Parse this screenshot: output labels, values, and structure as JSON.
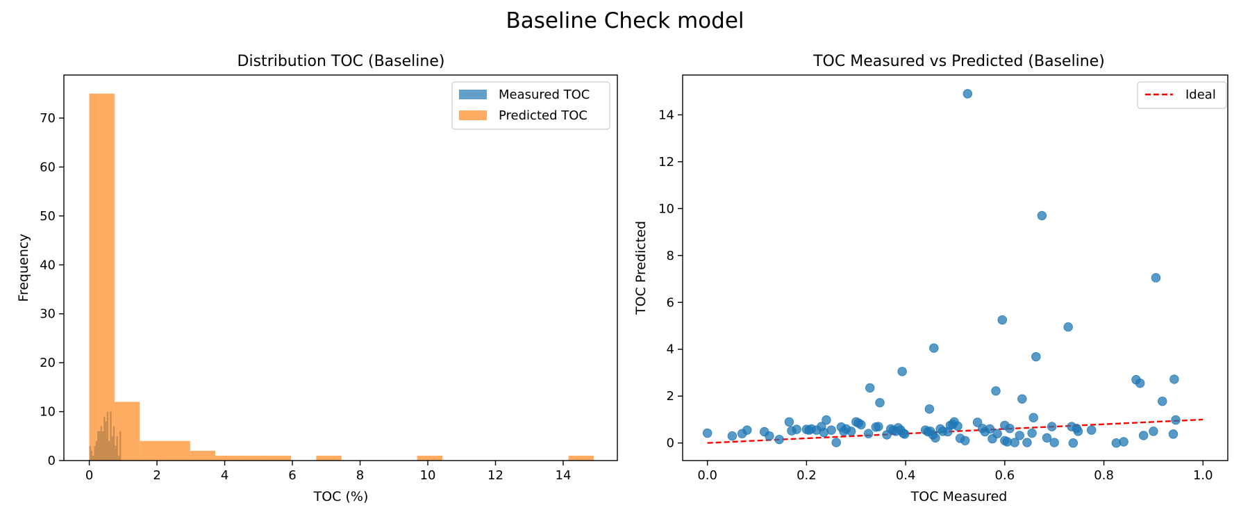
{
  "figure": {
    "title": "Baseline Check model"
  },
  "colors": {
    "measured": "#1f77b4",
    "predicted": "#ff7f0e",
    "ideal": "#ff0000",
    "legend_border": "#cccccc"
  },
  "chart_data": [
    {
      "type": "bar",
      "subtype": "histogram",
      "title": "Distribution TOC (Baseline)",
      "xlabel": "TOC (%)",
      "ylabel": "Frequency",
      "xlim": [
        -0.75,
        15.6
      ],
      "ylim": [
        0,
        78.8
      ],
      "xticks": [
        0,
        2,
        4,
        6,
        8,
        10,
        12,
        14
      ],
      "yticks": [
        0,
        10,
        20,
        30,
        40,
        50,
        60,
        70
      ],
      "legend_position": "top-right",
      "legend": [
        "Measured TOC",
        "Predicted TOC"
      ],
      "series": [
        {
          "name": "Measured TOC",
          "color": "#1f77b4",
          "opacity": 0.7,
          "bin_start": 0.0,
          "bin_width": 0.047,
          "counts": [
            3,
            2,
            1,
            3,
            4,
            6,
            6,
            7,
            6,
            9,
            8,
            10,
            4,
            10,
            5,
            7,
            3,
            5,
            1,
            6
          ]
        },
        {
          "name": "Predicted TOC",
          "color": "#ff7f0e",
          "opacity": 0.65,
          "bin_start": 0.0,
          "bin_width": 0.745,
          "counts": [
            75,
            12,
            4,
            4,
            2,
            1,
            1,
            1,
            0,
            1,
            0,
            0,
            0,
            1,
            0,
            0,
            0,
            0,
            0,
            1
          ]
        }
      ]
    },
    {
      "type": "scatter",
      "title": "TOC Measured vs Predicted (Baseline)",
      "xlabel": "TOC Measured",
      "ylabel": "TOC Predicted",
      "xlim": [
        -0.05,
        1.05
      ],
      "ylim": [
        -0.75,
        15.7
      ],
      "xticks": [
        "0.0",
        "0.2",
        "0.4",
        "0.6",
        "0.8",
        "1.0"
      ],
      "yticks": [
        "0",
        "2",
        "4",
        "6",
        "8",
        "10",
        "12",
        "14"
      ],
      "legend_position": "top-right",
      "legend": [
        "Ideal"
      ],
      "ideal_line": {
        "name": "Ideal",
        "x": [
          0,
          1
        ],
        "y": [
          0,
          1
        ],
        "color": "#ff0000",
        "style": "dashed"
      },
      "series": [
        {
          "name": "",
          "color": "#1f77b4",
          "points": [
            [
              0.0,
              0.42
            ],
            [
              0.05,
              0.3
            ],
            [
              0.07,
              0.4
            ],
            [
              0.08,
              0.55
            ],
            [
              0.115,
              0.48
            ],
            [
              0.125,
              0.3
            ],
            [
              0.145,
              0.15
            ],
            [
              0.165,
              0.9
            ],
            [
              0.17,
              0.52
            ],
            [
              0.18,
              0.58
            ],
            [
              0.2,
              0.58
            ],
            [
              0.205,
              0.55
            ],
            [
              0.21,
              0.6
            ],
            [
              0.22,
              0.55
            ],
            [
              0.23,
              0.7
            ],
            [
              0.235,
              0.45
            ],
            [
              0.24,
              0.98
            ],
            [
              0.25,
              0.55
            ],
            [
              0.26,
              0.02
            ],
            [
              0.27,
              0.68
            ],
            [
              0.275,
              0.5
            ],
            [
              0.28,
              0.6
            ],
            [
              0.29,
              0.5
            ],
            [
              0.3,
              0.9
            ],
            [
              0.305,
              0.85
            ],
            [
              0.31,
              0.78
            ],
            [
              0.325,
              0.4
            ],
            [
              0.328,
              2.35
            ],
            [
              0.34,
              0.68
            ],
            [
              0.345,
              0.7
            ],
            [
              0.348,
              1.72
            ],
            [
              0.362,
              0.35
            ],
            [
              0.37,
              0.6
            ],
            [
              0.375,
              0.55
            ],
            [
              0.38,
              0.5
            ],
            [
              0.385,
              0.65
            ],
            [
              0.39,
              0.55
            ],
            [
              0.393,
              3.05
            ],
            [
              0.395,
              0.42
            ],
            [
              0.398,
              0.38
            ],
            [
              0.44,
              0.55
            ],
            [
              0.445,
              0.48
            ],
            [
              0.448,
              1.45
            ],
            [
              0.45,
              0.5
            ],
            [
              0.455,
              0.35
            ],
            [
              0.457,
              4.05
            ],
            [
              0.46,
              0.22
            ],
            [
              0.47,
              0.6
            ],
            [
              0.475,
              0.5
            ],
            [
              0.485,
              0.48
            ],
            [
              0.49,
              0.75
            ],
            [
              0.495,
              0.8
            ],
            [
              0.498,
              0.9
            ],
            [
              0.505,
              0.72
            ],
            [
              0.51,
              0.2
            ],
            [
              0.52,
              0.1
            ],
            [
              0.525,
              14.9
            ],
            [
              0.545,
              0.88
            ],
            [
              0.555,
              0.62
            ],
            [
              0.56,
              0.48
            ],
            [
              0.57,
              0.6
            ],
            [
              0.575,
              0.18
            ],
            [
              0.582,
              2.22
            ],
            [
              0.585,
              0.4
            ],
            [
              0.595,
              5.25
            ],
            [
              0.6,
              0.75
            ],
            [
              0.6,
              0.1
            ],
            [
              0.605,
              0.05
            ],
            [
              0.61,
              0.62
            ],
            [
              0.62,
              0.02
            ],
            [
              0.63,
              0.32
            ],
            [
              0.635,
              1.88
            ],
            [
              0.645,
              0.02
            ],
            [
              0.655,
              0.42
            ],
            [
              0.658,
              1.08
            ],
            [
              0.663,
              3.68
            ],
            [
              0.675,
              9.7
            ],
            [
              0.685,
              0.22
            ],
            [
              0.695,
              0.7
            ],
            [
              0.7,
              0.02
            ],
            [
              0.728,
              4.95
            ],
            [
              0.735,
              0.7
            ],
            [
              0.738,
              0.0
            ],
            [
              0.745,
              0.62
            ],
            [
              0.748,
              0.5
            ],
            [
              0.775,
              0.55
            ],
            [
              0.825,
              0.0
            ],
            [
              0.84,
              0.05
            ],
            [
              0.865,
              2.7
            ],
            [
              0.873,
              2.55
            ],
            [
              0.88,
              0.32
            ],
            [
              0.9,
              0.5
            ],
            [
              0.905,
              7.05
            ],
            [
              0.918,
              1.78
            ],
            [
              0.94,
              0.38
            ],
            [
              0.942,
              2.72
            ],
            [
              0.945,
              0.98
            ]
          ]
        }
      ]
    }
  ]
}
